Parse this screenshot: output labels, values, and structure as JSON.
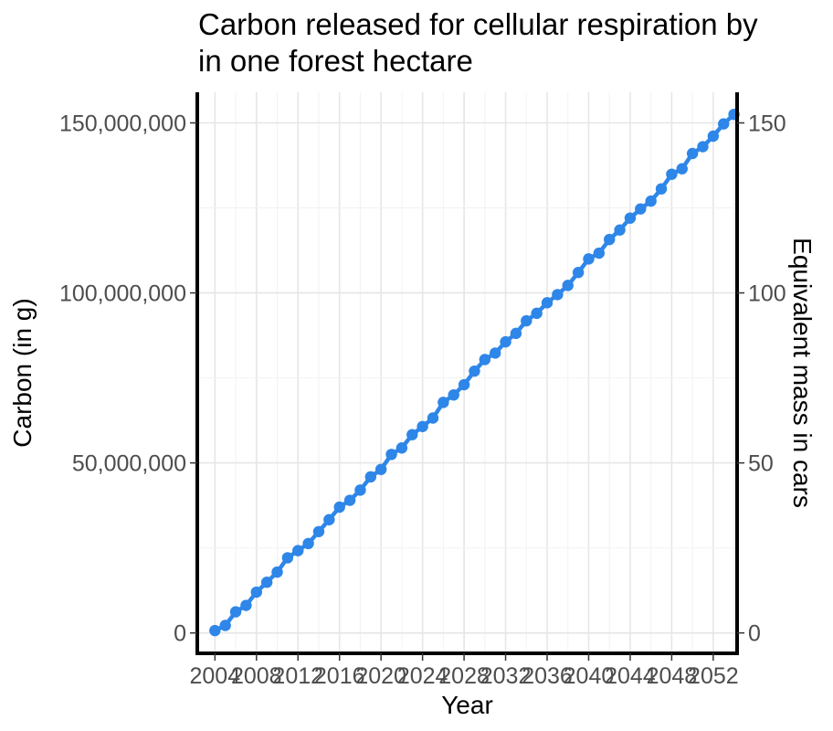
{
  "chart_data": {
    "type": "line",
    "title_lines": [
      "Carbon released for cellular respiration by",
      "in one forest hectare"
    ],
    "xlabel": "Year",
    "ylabel": "Carbon (in g)",
    "y2label": "Equivalent mass in cars",
    "xlim": [
      2002.3,
      2054.3
    ],
    "ylim": [
      -6000000,
      159000000
    ],
    "y2_scale_note": "1 car = 1,000,000 g",
    "x_ticks": [
      2004,
      2008,
      2012,
      2016,
      2020,
      2024,
      2028,
      2032,
      2036,
      2040,
      2044,
      2048,
      2052
    ],
    "x_tick_labels": [
      "2004",
      "2008",
      "2012",
      "2016",
      "2020",
      "2024",
      "2028",
      "2032",
      "2036",
      "2040",
      "2044",
      "2048",
      "2052"
    ],
    "y_ticks": [
      0,
      50000000,
      100000000,
      150000000
    ],
    "y_tick_labels": [
      "0",
      "50,000,000",
      "100,000,000",
      "150,000,000"
    ],
    "y2_ticks": [
      0,
      50,
      100,
      150
    ],
    "y2_tick_labels": [
      "0",
      "50",
      "100",
      "150"
    ],
    "grid": true,
    "series": [
      {
        "color": "#2e86e8",
        "x": [
          2004,
          2005,
          2006,
          2007,
          2008,
          2009,
          2010,
          2011,
          2012,
          2013,
          2014,
          2015,
          2016,
          2017,
          2018,
          2019,
          2020,
          2021,
          2022,
          2023,
          2024,
          2025,
          2026,
          2027,
          2028,
          2029,
          2030,
          2031,
          2032,
          2033,
          2034,
          2035,
          2036,
          2037,
          2038,
          2039,
          2040,
          2041,
          2042,
          2043,
          2044,
          2045,
          2046,
          2047,
          2048,
          2049,
          2050,
          2051,
          2052,
          2053,
          2054
        ],
        "values": [
          700000,
          2200000,
          6200000,
          8100000,
          12000000,
          14900000,
          17900000,
          22100000,
          24200000,
          26300000,
          29800000,
          33300000,
          37000000,
          39000000,
          42000000,
          45900000,
          48100000,
          52500000,
          54400000,
          58300000,
          60700000,
          63200000,
          67800000,
          70000000,
          73000000,
          77000000,
          80400000,
          82300000,
          85600000,
          88100000,
          91800000,
          94000000,
          97100000,
          99500000,
          102200000,
          106000000,
          110000000,
          111700000,
          115700000,
          118500000,
          122000000,
          124700000,
          127000000,
          130600000,
          134900000,
          136500000,
          141000000,
          143000000,
          146100000,
          149700000,
          152500000
        ]
      }
    ]
  }
}
